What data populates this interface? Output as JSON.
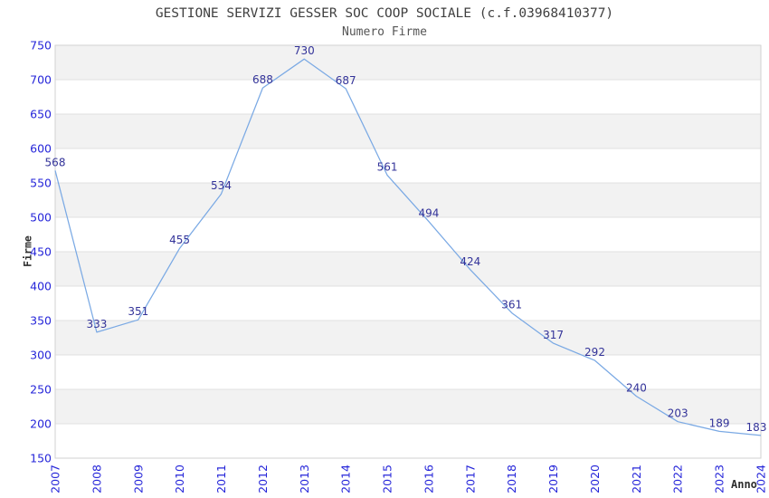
{
  "chart_data": {
    "type": "line",
    "title": "GESTIONE SERVIZI GESSER SOC COOP SOCIALE (c.f.03968410377)",
    "subtitle": "Numero Firme",
    "xlabel": "Anno",
    "ylabel": "Firme",
    "categories": [
      "2007",
      "2008",
      "2009",
      "2010",
      "2011",
      "2012",
      "2013",
      "2014",
      "2015",
      "2016",
      "2017",
      "2018",
      "2019",
      "2020",
      "2021",
      "2022",
      "2023",
      "2024"
    ],
    "series": [
      {
        "name": "Numero Firme",
        "values": [
          568,
          333,
          351,
          455,
          534,
          688,
          730,
          687,
          561,
          494,
          424,
          361,
          317,
          292,
          240,
          203,
          189,
          183
        ]
      }
    ],
    "ylim": [
      150,
      750
    ],
    "y_tick_step": 50,
    "y_tick_labels": [
      "150",
      "200",
      "250",
      "300",
      "350",
      "400",
      "450",
      "500",
      "550",
      "600",
      "650",
      "700",
      "750"
    ],
    "grid": "horizontal-only",
    "legend_position": "none",
    "data_labels_visible": true,
    "colors": {
      "line": "#7aa9e4",
      "data_label": "#333399",
      "tick_label": "#2626d9",
      "band_gray": "#f2f2f2",
      "band_white": "#ffffff",
      "gridline": "#e0e0e0",
      "plot_border": "#d2d2d2",
      "title_text": "#3f3f3f",
      "subtitle_text": "#555555",
      "axis_title_text": "#2e2e2e",
      "background": "#ffffff"
    }
  }
}
